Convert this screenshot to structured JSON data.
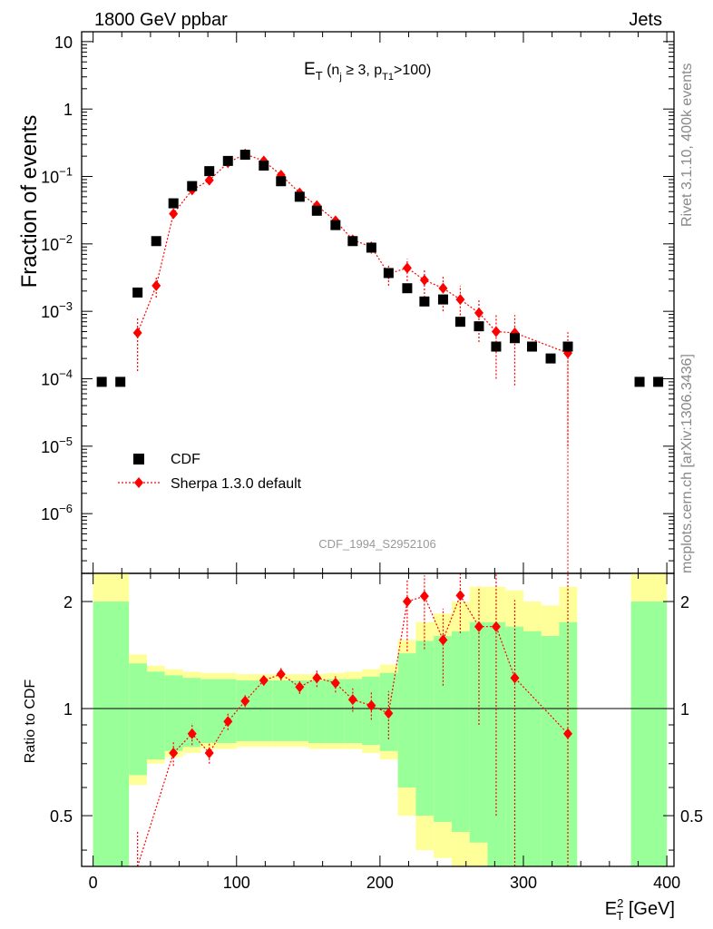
{
  "header": {
    "left": "1800 GeV ppbar",
    "right": "Jets"
  },
  "side_labels": {
    "rivet": "Rivet 3.1.10,  400k events",
    "mcplots": "mcplots.cern.ch [arXiv:1306.3436]"
  },
  "watermark": "CDF_1994_S2952106",
  "colors": {
    "data": "#000000",
    "mc": "#ff0000",
    "band_inner": "#99ff99",
    "band_outer": "#ffff99"
  },
  "chart_data": [
    {
      "type": "scatter",
      "title": "",
      "xlabel": "",
      "ylabel": "Fraction of events",
      "yscale": "log",
      "xlim": [
        -8,
        405
      ],
      "ylim": [
        1.3e-07,
        14
      ],
      "yticks": [
        {
          "value": 1e-06,
          "base": "10",
          "exp": "−6"
        },
        {
          "value": 1e-05,
          "base": "10",
          "exp": "−5"
        },
        {
          "value": 0.0001,
          "base": "10",
          "exp": "−4"
        },
        {
          "value": 0.001,
          "base": "10",
          "exp": "−3"
        },
        {
          "value": 0.01,
          "base": "10",
          "exp": "−2"
        },
        {
          "value": 0.1,
          "base": "10",
          "exp": "−1"
        },
        {
          "value": 1,
          "base": "1",
          "exp": ""
        },
        {
          "value": 10,
          "base": "10",
          "exp": ""
        }
      ],
      "label": {
        "main": "E",
        "sub": "T",
        "text1": " (n",
        "sub2": "j",
        "text2": " ≥ 3, p",
        "sub3": "T1",
        "text3": ">100)"
      },
      "legend": {
        "position": "lower-left",
        "entries": [
          {
            "name": "CDF",
            "style": "square"
          },
          {
            "name": "Sherpa 1.3.0 default",
            "style": "diamond-dotted"
          }
        ]
      },
      "series": [
        {
          "name": "CDF",
          "x": [
            6,
            19,
            31,
            44,
            56,
            69,
            81,
            94,
            106,
            119,
            131,
            144,
            156,
            169,
            181,
            194,
            206,
            219,
            231,
            244,
            256,
            269,
            281,
            294,
            306,
            319,
            331,
            381,
            394
          ],
          "y": [
            9e-05,
            9e-05,
            0.0019,
            0.011,
            0.04,
            0.072,
            0.12,
            0.17,
            0.21,
            0.145,
            0.085,
            0.05,
            0.031,
            0.019,
            0.011,
            0.0088,
            0.0037,
            0.0022,
            0.0014,
            0.0015,
            0.0007,
            0.0006,
            0.0003,
            0.0004,
            0.0003,
            0.0002,
            0.0003,
            9e-05,
            9e-05
          ]
        },
        {
          "name": "Sherpa 1.3.0 default",
          "x": [
            31,
            44,
            56,
            69,
            81,
            94,
            106,
            119,
            131,
            144,
            156,
            169,
            181,
            194,
            206,
            219,
            231,
            244,
            256,
            269,
            281,
            294,
            331
          ],
          "y": [
            0.00048,
            0.0024,
            0.028,
            0.063,
            0.088,
            0.16,
            0.215,
            0.17,
            0.105,
            0.057,
            0.037,
            0.022,
            0.0115,
            0.009,
            0.0036,
            0.0044,
            0.0029,
            0.0022,
            0.0015,
            0.00095,
            0.0005,
            0.00048,
            0.00024
          ],
          "yerr_low": [
            0.00035,
            0.0008,
            0.004,
            0.006,
            0.007,
            0.012,
            0.015,
            0.013,
            0.01,
            0.007,
            0.005,
            0.004,
            0.002,
            0.0018,
            0.0012,
            0.0016,
            0.0013,
            0.0012,
            0.0009,
            0.0006,
            0.0004,
            0.0004,
            0.00023
          ],
          "yerr_high": [
            0.00035,
            0.0008,
            0.004,
            0.006,
            0.007,
            0.012,
            0.015,
            0.013,
            0.01,
            0.007,
            0.005,
            0.004,
            0.002,
            0.0018,
            0.0012,
            0.0016,
            0.0013,
            0.0012,
            0.0009,
            0.0006,
            0.0004,
            0.0004,
            0.00025
          ]
        }
      ]
    },
    {
      "type": "line",
      "title": "",
      "xlabel": "E_T^2 [GeV]",
      "xlabel_parts": {
        "main": "E",
        "sup": "2",
        "sub": "T",
        "unit": " [GeV]"
      },
      "ylabel": "Ratio to CDF",
      "yscale": "log",
      "xlim": [
        -8,
        405
      ],
      "ylim": [
        0.36,
        2.4
      ],
      "xticks": [
        0,
        100,
        200,
        300,
        400
      ],
      "yticks": [
        0.5,
        1,
        2
      ],
      "reference_line": 1,
      "bands": {
        "edges": [
          0,
          25,
          37.5,
          50,
          62.5,
          75,
          87.5,
          100,
          112.5,
          125,
          137.5,
          150,
          162.5,
          175,
          187.5,
          200,
          212.5,
          225,
          237.5,
          250,
          262.5,
          275,
          287.5,
          300,
          312.5,
          325,
          337.5
        ],
        "inner_low": [
          0.3,
          0.65,
          0.72,
          0.76,
          0.78,
          0.8,
          0.8,
          0.81,
          0.81,
          0.81,
          0.81,
          0.8,
          0.8,
          0.8,
          0.79,
          0.76,
          0.6,
          0.5,
          0.48,
          0.45,
          0.42,
          0.35,
          0.3,
          0.3,
          0.3,
          0.3
        ],
        "inner_high": [
          2.0,
          1.34,
          1.27,
          1.24,
          1.22,
          1.21,
          1.21,
          1.2,
          1.2,
          1.2,
          1.2,
          1.2,
          1.21,
          1.21,
          1.23,
          1.26,
          1.43,
          1.55,
          1.6,
          1.65,
          1.75,
          1.75,
          1.7,
          1.65,
          1.6,
          1.75
        ],
        "outer_low": [
          0.3,
          0.61,
          0.7,
          0.73,
          0.75,
          0.77,
          0.77,
          0.78,
          0.78,
          0.78,
          0.78,
          0.77,
          0.77,
          0.77,
          0.75,
          0.72,
          0.5,
          0.4,
          0.38,
          0.35,
          0.32,
          0.3,
          0.3,
          0.3,
          0.3,
          0.3
        ],
        "outer_high": [
          2.4,
          1.42,
          1.32,
          1.29,
          1.27,
          1.26,
          1.26,
          1.25,
          1.25,
          1.25,
          1.25,
          1.25,
          1.26,
          1.27,
          1.29,
          1.33,
          1.56,
          1.75,
          1.85,
          2.0,
          2.2,
          2.2,
          2.15,
          2.0,
          1.95,
          2.2
        ],
        "extra": {
          "edges": [
            375,
            400
          ],
          "inner": [
            0.3,
            2.0
          ],
          "outer": [
            0.3,
            2.4
          ]
        }
      },
      "series": [
        {
          "name": "Sherpa 1.3.0 default",
          "x": [
            31,
            56,
            69,
            81,
            94,
            106,
            119,
            131,
            144,
            156,
            169,
            181,
            194,
            206,
            219,
            231,
            244,
            256,
            269,
            281,
            294,
            331
          ],
          "y": [
            0.25,
            0.75,
            0.85,
            0.75,
            0.92,
            1.05,
            1.2,
            1.25,
            1.15,
            1.22,
            1.18,
            1.06,
            1.02,
            0.97,
            2.0,
            2.07,
            1.56,
            2.08,
            1.7,
            1.7,
            1.22,
            0.85
          ],
          "yerr_low": [
            0.2,
            0.06,
            0.06,
            0.05,
            0.05,
            0.04,
            0.04,
            0.05,
            0.05,
            0.07,
            0.07,
            0.08,
            0.09,
            0.15,
            0.55,
            0.6,
            0.4,
            0.45,
            0.8,
            1.2,
            1.0,
            0.7
          ],
          "yerr_high": [
            0.2,
            0.06,
            0.06,
            0.05,
            0.05,
            0.04,
            0.04,
            0.05,
            0.05,
            0.07,
            0.07,
            0.08,
            0.09,
            0.15,
            0.3,
            0.3,
            0.35,
            0.35,
            0.5,
            0.7,
            0.8,
            1.6
          ]
        }
      ]
    }
  ]
}
